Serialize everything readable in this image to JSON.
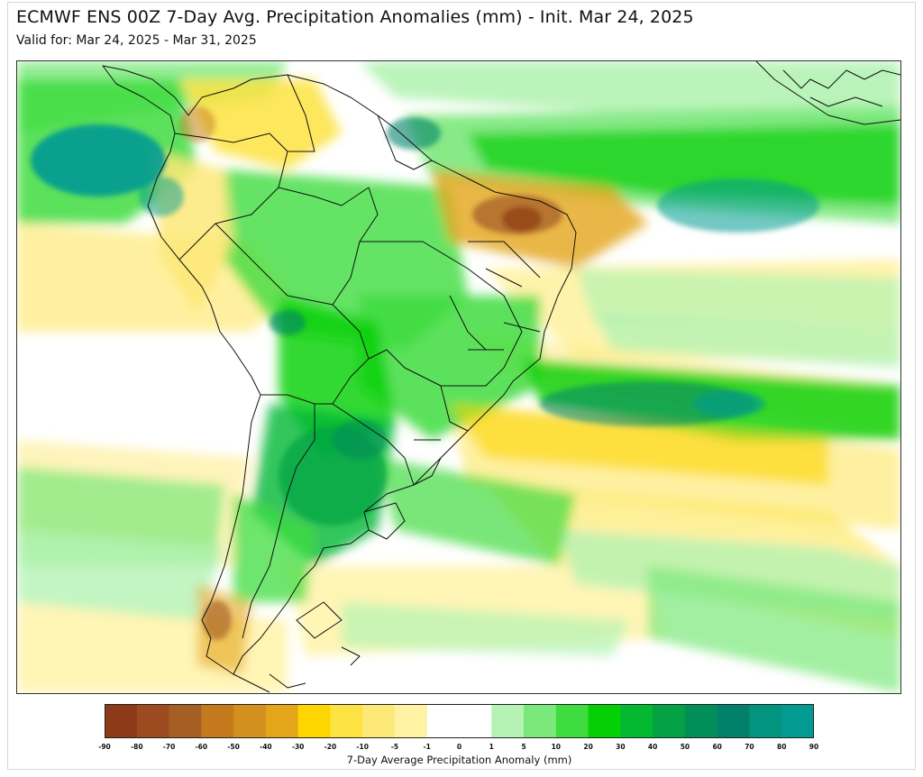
{
  "header": {
    "title": "ECMWF ENS 00Z 7-Day Avg. Precipitation Anomalies (mm) - Init. Mar 24, 2025",
    "subtitle": "Valid for: Mar 24, 2025 - Mar 31, 2025"
  },
  "colorbar": {
    "label": "7-Day Average Precipitation Anomaly (mm)",
    "ticks": [
      "-90",
      "-80",
      "-70",
      "-60",
      "-50",
      "-40",
      "-30",
      "-20",
      "-10",
      "-5",
      "-1",
      "0",
      "1",
      "5",
      "10",
      "20",
      "30",
      "40",
      "50",
      "60",
      "70",
      "80",
      "90"
    ],
    "colors": [
      "#8c3a17",
      "#9c4a1f",
      "#a55f25",
      "#c47a1c",
      "#d4901e",
      "#e4a51a",
      "#fdd600",
      "#fde341",
      "#fde978",
      "#fff2a2",
      "#ffffff",
      "#ffffff",
      "#b4f3b4",
      "#7ae87a",
      "#3edc3e",
      "#05cf05",
      "#04b832",
      "#04a244",
      "#028e58",
      "#02806a",
      "#02947e",
      "#039a92",
      "#0aa6b8"
    ]
  },
  "palette": {
    "land_border": "#111111",
    "dry_strong": "#a55f25",
    "dry": "#e4a51a",
    "dry_light": "#fde978",
    "wet_light": "#b4f3b4",
    "wet": "#3edc3e",
    "wet_strong": "#04a244",
    "wet_max": "#0aa6b8"
  }
}
